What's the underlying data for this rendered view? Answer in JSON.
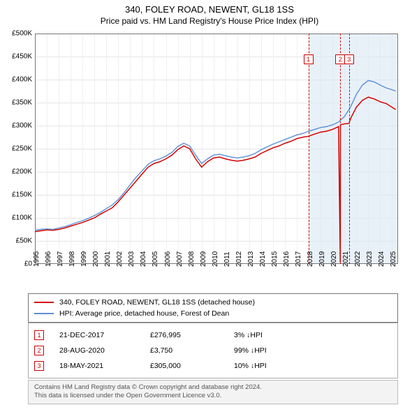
{
  "title": {
    "main": "340, FOLEY ROAD, NEWENT, GL18 1SS",
    "sub": "Price paid vs. HM Land Registry's House Price Index (HPI)"
  },
  "chart": {
    "type": "line",
    "background_color": "#ffffff",
    "grid_color": "#e5e5e5",
    "border_color": "#777777",
    "ylim": [
      0,
      500000
    ],
    "ytick_step": 50000,
    "ytick_labels": [
      "£0",
      "£50K",
      "£100K",
      "£150K",
      "£200K",
      "£250K",
      "£300K",
      "£350K",
      "£400K",
      "£450K",
      "£500K"
    ],
    "xlim": [
      1995,
      2025.5
    ],
    "xtick_years": [
      1995,
      1996,
      1997,
      1998,
      1999,
      2000,
      2001,
      2002,
      2003,
      2004,
      2005,
      2006,
      2007,
      2008,
      2009,
      2010,
      2011,
      2012,
      2013,
      2014,
      2015,
      2016,
      2017,
      2018,
      2019,
      2020,
      2021,
      2022,
      2023,
      2024,
      2025
    ],
    "band": {
      "x_start": 2017.97,
      "x_end": 2025.5,
      "color": "#dbe8f4"
    },
    "event_lines": [
      {
        "x": 2017.97,
        "color": "#cc0000"
      },
      {
        "x": 2020.65,
        "color": "#cc0000"
      },
      {
        "x": 2021.38,
        "color": "#cc0000"
      }
    ],
    "event_markers": [
      {
        "x": 2017.97,
        "num": "1"
      },
      {
        "x": 2020.65,
        "num": "2"
      },
      {
        "x": 2021.38,
        "num": "3"
      }
    ],
    "series": [
      {
        "name": "price_paid",
        "color": "#d40000",
        "line_width": 1.5,
        "points": [
          [
            1995.0,
            70000
          ],
          [
            1995.5,
            72000
          ],
          [
            1996.0,
            74000
          ],
          [
            1996.5,
            73000
          ],
          [
            1997.0,
            75000
          ],
          [
            1997.5,
            78000
          ],
          [
            1998.0,
            82000
          ],
          [
            1998.5,
            86000
          ],
          [
            1999.0,
            90000
          ],
          [
            1999.5,
            95000
          ],
          [
            2000.0,
            100000
          ],
          [
            2000.5,
            108000
          ],
          [
            2001.0,
            115000
          ],
          [
            2001.5,
            122000
          ],
          [
            2002.0,
            135000
          ],
          [
            2002.5,
            150000
          ],
          [
            2003.0,
            165000
          ],
          [
            2003.5,
            180000
          ],
          [
            2004.0,
            195000
          ],
          [
            2004.5,
            210000
          ],
          [
            2005.0,
            218000
          ],
          [
            2005.5,
            222000
          ],
          [
            2006.0,
            228000
          ],
          [
            2006.5,
            236000
          ],
          [
            2007.0,
            248000
          ],
          [
            2007.5,
            256000
          ],
          [
            2008.0,
            250000
          ],
          [
            2008.5,
            228000
          ],
          [
            2009.0,
            210000
          ],
          [
            2009.5,
            222000
          ],
          [
            2010.0,
            230000
          ],
          [
            2010.5,
            232000
          ],
          [
            2011.0,
            228000
          ],
          [
            2011.5,
            225000
          ],
          [
            2012.0,
            223000
          ],
          [
            2012.5,
            225000
          ],
          [
            2013.0,
            228000
          ],
          [
            2013.5,
            232000
          ],
          [
            2014.0,
            240000
          ],
          [
            2014.5,
            246000
          ],
          [
            2015.0,
            252000
          ],
          [
            2015.5,
            256000
          ],
          [
            2016.0,
            262000
          ],
          [
            2016.5,
            266000
          ],
          [
            2017.0,
            272000
          ],
          [
            2017.5,
            275000
          ],
          [
            2017.97,
            276995
          ],
          [
            2018.5,
            282000
          ],
          [
            2019.0,
            286000
          ],
          [
            2019.5,
            288000
          ],
          [
            2020.0,
            292000
          ],
          [
            2020.5,
            298000
          ],
          [
            2020.65,
            3750
          ],
          [
            2020.66,
            302000
          ],
          [
            2021.0,
            304000
          ],
          [
            2021.38,
            305000
          ],
          [
            2021.5,
            315000
          ],
          [
            2022.0,
            340000
          ],
          [
            2022.5,
            355000
          ],
          [
            2023.0,
            362000
          ],
          [
            2023.5,
            358000
          ],
          [
            2024.0,
            352000
          ],
          [
            2024.5,
            348000
          ],
          [
            2025.0,
            340000
          ],
          [
            2025.3,
            335000
          ]
        ]
      },
      {
        "name": "hpi",
        "color": "#5b8fd6",
        "line_width": 1.4,
        "points": [
          [
            1995.0,
            73000
          ],
          [
            1995.5,
            75000
          ],
          [
            1996.0,
            76000
          ],
          [
            1996.5,
            75000
          ],
          [
            1997.0,
            78000
          ],
          [
            1997.5,
            81000
          ],
          [
            1998.0,
            85000
          ],
          [
            1998.5,
            90000
          ],
          [
            1999.0,
            94000
          ],
          [
            1999.5,
            99000
          ],
          [
            2000.0,
            105000
          ],
          [
            2000.5,
            112000
          ],
          [
            2001.0,
            120000
          ],
          [
            2001.5,
            128000
          ],
          [
            2002.0,
            140000
          ],
          [
            2002.5,
            155000
          ],
          [
            2003.0,
            172000
          ],
          [
            2003.5,
            188000
          ],
          [
            2004.0,
            202000
          ],
          [
            2004.5,
            216000
          ],
          [
            2005.0,
            224000
          ],
          [
            2005.5,
            228000
          ],
          [
            2006.0,
            234000
          ],
          [
            2006.5,
            242000
          ],
          [
            2007.0,
            255000
          ],
          [
            2007.5,
            262000
          ],
          [
            2008.0,
            256000
          ],
          [
            2008.5,
            236000
          ],
          [
            2009.0,
            218000
          ],
          [
            2009.5,
            228000
          ],
          [
            2010.0,
            236000
          ],
          [
            2010.5,
            238000
          ],
          [
            2011.0,
            235000
          ],
          [
            2011.5,
            232000
          ],
          [
            2012.0,
            230000
          ],
          [
            2012.5,
            232000
          ],
          [
            2013.0,
            235000
          ],
          [
            2013.5,
            240000
          ],
          [
            2014.0,
            248000
          ],
          [
            2014.5,
            254000
          ],
          [
            2015.0,
            260000
          ],
          [
            2015.5,
            265000
          ],
          [
            2016.0,
            270000
          ],
          [
            2016.5,
            275000
          ],
          [
            2017.0,
            280000
          ],
          [
            2017.5,
            283000
          ],
          [
            2018.0,
            288000
          ],
          [
            2018.5,
            292000
          ],
          [
            2019.0,
            296000
          ],
          [
            2019.5,
            298000
          ],
          [
            2020.0,
            302000
          ],
          [
            2020.5,
            308000
          ],
          [
            2021.0,
            320000
          ],
          [
            2021.5,
            340000
          ],
          [
            2022.0,
            368000
          ],
          [
            2022.5,
            388000
          ],
          [
            2023.0,
            398000
          ],
          [
            2023.5,
            395000
          ],
          [
            2024.0,
            388000
          ],
          [
            2024.5,
            382000
          ],
          [
            2025.0,
            378000
          ],
          [
            2025.3,
            375000
          ]
        ]
      }
    ]
  },
  "legend": {
    "items": [
      {
        "color": "#d40000",
        "label": "340, FOLEY ROAD, NEWENT, GL18 1SS (detached house)"
      },
      {
        "color": "#5b8fd6",
        "label": "HPI: Average price, detached house, Forest of Dean"
      }
    ]
  },
  "events": {
    "rows": [
      {
        "num": "1",
        "date": "21-DEC-2017",
        "price": "£276,995",
        "pct": "3%",
        "suffix": "HPI"
      },
      {
        "num": "2",
        "date": "28-AUG-2020",
        "price": "£3,750",
        "pct": "99%",
        "suffix": "HPI"
      },
      {
        "num": "3",
        "date": "18-MAY-2021",
        "price": "£305,000",
        "pct": "10%",
        "suffix": "HPI"
      }
    ]
  },
  "footer": {
    "line1": "Contains HM Land Registry data © Crown copyright and database right 2024.",
    "line2": "This data is licensed under the Open Government Licence v3.0."
  }
}
